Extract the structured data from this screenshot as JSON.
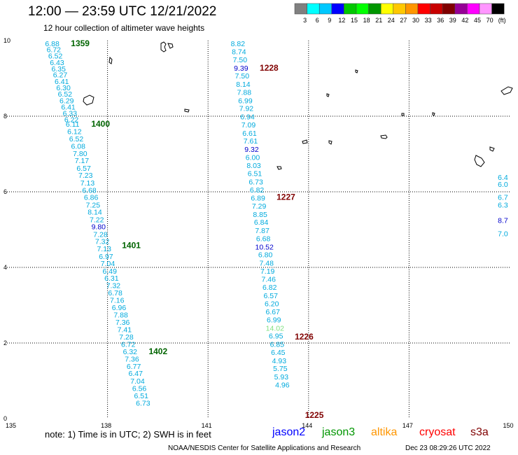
{
  "header": {
    "title": "12:00 — 23:59 UTC 12/21/2022",
    "subtitle": "12 hour collection of altimeter wave heights"
  },
  "legend": {
    "labels": [
      "3",
      "6",
      "9",
      "12",
      "15",
      "18",
      "21",
      "24",
      "27",
      "30",
      "33",
      "36",
      "39",
      "42",
      "45",
      "70",
      "(ft)"
    ],
    "colors": [
      "#808080",
      "#00ffff",
      "#00c8ff",
      "#0000ff",
      "#00c800",
      "#00ff00",
      "#009600",
      "#ffff00",
      "#ffc800",
      "#ff9600",
      "#ff0000",
      "#c80000",
      "#800000",
      "#960096",
      "#ff00ff",
      "#ff96ff",
      "#000000"
    ]
  },
  "axes": {
    "x_ticks": [
      "135",
      "138",
      "141",
      "144",
      "147",
      "150"
    ],
    "y_ticks": [
      "10",
      "8",
      "6",
      "4",
      "2",
      "0"
    ]
  },
  "tracks": [
    {
      "name": "track-1",
      "times": [
        {
          "label": "1359",
          "lat": 9.93,
          "color": "#006400"
        },
        {
          "label": "1400",
          "lat": 7.8,
          "color": "#006400"
        },
        {
          "label": "1401",
          "lat": 4.58,
          "color": "#006400"
        },
        {
          "label": "1402",
          "lat": 1.78,
          "color": "#006400"
        }
      ],
      "readings": [
        {
          "v": "6.88",
          "lat": 9.93,
          "c": "#00aadd"
        },
        {
          "v": "6.72",
          "lat": 9.77,
          "c": "#00aadd"
        },
        {
          "v": "6.52",
          "lat": 9.6,
          "c": "#00aadd"
        },
        {
          "v": "6.43",
          "lat": 9.43,
          "c": "#00aadd"
        },
        {
          "v": "6.35",
          "lat": 9.26,
          "c": "#00aadd"
        },
        {
          "v": "6.27",
          "lat": 9.1,
          "c": "#00aadd"
        },
        {
          "v": "6.41",
          "lat": 8.93,
          "c": "#00aadd"
        },
        {
          "v": "6.30",
          "lat": 8.76,
          "c": "#00aadd"
        },
        {
          "v": "6.52",
          "lat": 8.59,
          "c": "#00aadd"
        },
        {
          "v": "6.29",
          "lat": 8.42,
          "c": "#00aadd"
        },
        {
          "v": "6.41",
          "lat": 8.25,
          "c": "#00aadd"
        },
        {
          "v": "6.33",
          "lat": 8.08,
          "c": "#00aadd"
        },
        {
          "v": "6.22",
          "lat": 7.92,
          "c": "#00aadd"
        },
        {
          "v": "6.11",
          "lat": 7.8,
          "c": "#00aadd"
        },
        {
          "v": "6.12",
          "lat": 7.6,
          "c": "#00aadd"
        },
        {
          "v": "6.52",
          "lat": 7.41,
          "c": "#00aadd"
        },
        {
          "v": "6.08",
          "lat": 7.21,
          "c": "#00aadd"
        },
        {
          "v": "7.80",
          "lat": 7.02,
          "c": "#00aadd"
        },
        {
          "v": "7.17",
          "lat": 6.83,
          "c": "#00aadd"
        },
        {
          "v": "6.57",
          "lat": 6.63,
          "c": "#00aadd"
        },
        {
          "v": "7.23",
          "lat": 6.44,
          "c": "#00aadd"
        },
        {
          "v": "7.13",
          "lat": 6.24,
          "c": "#00aadd"
        },
        {
          "v": "6.68",
          "lat": 6.05,
          "c": "#00aadd"
        },
        {
          "v": "6.86",
          "lat": 5.86,
          "c": "#00aadd"
        },
        {
          "v": "7.25",
          "lat": 5.66,
          "c": "#00aadd"
        },
        {
          "v": "8.14",
          "lat": 5.47,
          "c": "#00aadd"
        },
        {
          "v": "7.22",
          "lat": 5.27,
          "c": "#00aadd"
        },
        {
          "v": "9.80",
          "lat": 5.08,
          "c": "#0000cc"
        },
        {
          "v": "7.28",
          "lat": 4.88,
          "c": "#00aadd"
        },
        {
          "v": "7.32",
          "lat": 4.69,
          "c": "#00aadd"
        },
        {
          "v": "7.13",
          "lat": 4.5,
          "c": "#00aadd"
        },
        {
          "v": "6.97",
          "lat": 4.3,
          "c": "#00aadd"
        },
        {
          "v": "7.04",
          "lat": 4.11,
          "c": "#00aadd"
        },
        {
          "v": "6.49",
          "lat": 3.91,
          "c": "#00aadd"
        },
        {
          "v": "6.31",
          "lat": 3.72,
          "c": "#00aadd"
        },
        {
          "v": "7.32",
          "lat": 3.53,
          "c": "#00aadd"
        },
        {
          "v": "6.78",
          "lat": 3.33,
          "c": "#00aadd"
        },
        {
          "v": "7.16",
          "lat": 3.14,
          "c": "#00aadd"
        },
        {
          "v": "6.96",
          "lat": 2.94,
          "c": "#00aadd"
        },
        {
          "v": "7.88",
          "lat": 2.75,
          "c": "#00aadd"
        },
        {
          "v": "7.36",
          "lat": 2.56,
          "c": "#00aadd"
        },
        {
          "v": "7.41",
          "lat": 2.36,
          "c": "#00aadd"
        },
        {
          "v": "7.28",
          "lat": 2.17,
          "c": "#00aadd"
        },
        {
          "v": "6.72",
          "lat": 1.97,
          "c": "#00aadd"
        },
        {
          "v": "6.32",
          "lat": 1.78,
          "c": "#00aadd"
        },
        {
          "v": "7.36",
          "lat": 1.58,
          "c": "#00aadd"
        },
        {
          "v": "6.77",
          "lat": 1.39,
          "c": "#00aadd"
        },
        {
          "v": "6.47",
          "lat": 1.2,
          "c": "#00aadd"
        },
        {
          "v": "7.04",
          "lat": 1.0,
          "c": "#00aadd"
        },
        {
          "v": "6.56",
          "lat": 0.81,
          "c": "#00aadd"
        },
        {
          "v": "6.51",
          "lat": 0.61,
          "c": "#00aadd"
        },
        {
          "v": "6.73",
          "lat": 0.42,
          "c": "#00aadd"
        }
      ]
    },
    {
      "name": "track-2",
      "times": [
        {
          "label": "1228",
          "lat": 9.28,
          "color": "#800000"
        },
        {
          "label": "1227",
          "lat": 5.86,
          "color": "#800000"
        },
        {
          "label": "1226",
          "lat": 2.17,
          "color": "#800000"
        },
        {
          "label": "1225",
          "lat": 0.09,
          "color": "#800000"
        }
      ],
      "readings": [
        {
          "v": "8.82",
          "lat": 9.93,
          "c": "#00aadd"
        },
        {
          "v": "8.74",
          "lat": 9.71,
          "c": "#00aadd"
        },
        {
          "v": "7.50",
          "lat": 9.5,
          "c": "#00aadd"
        },
        {
          "v": "9.39",
          "lat": 9.28,
          "c": "#0000cc"
        },
        {
          "v": "7.50",
          "lat": 9.07,
          "c": "#00aadd"
        },
        {
          "v": "8.14",
          "lat": 8.85,
          "c": "#00aadd"
        },
        {
          "v": "7.88",
          "lat": 8.64,
          "c": "#00aadd"
        },
        {
          "v": "6.99",
          "lat": 8.42,
          "c": "#00aadd"
        },
        {
          "v": "7.92",
          "lat": 8.21,
          "c": "#00aadd"
        },
        {
          "v": "6.94",
          "lat": 7.99,
          "c": "#00aadd"
        },
        {
          "v": "7.09",
          "lat": 7.78,
          "c": "#00aadd"
        },
        {
          "v": "6.61",
          "lat": 7.56,
          "c": "#00aadd"
        },
        {
          "v": "7.61",
          "lat": 7.35,
          "c": "#00aadd"
        },
        {
          "v": "9.32",
          "lat": 7.13,
          "c": "#0000cc"
        },
        {
          "v": "6.00",
          "lat": 6.92,
          "c": "#00aadd"
        },
        {
          "v": "8.03",
          "lat": 6.7,
          "c": "#00aadd"
        },
        {
          "v": "6.51",
          "lat": 6.49,
          "c": "#00aadd"
        },
        {
          "v": "6.73",
          "lat": 6.27,
          "c": "#00aadd"
        },
        {
          "v": "6.82",
          "lat": 6.06,
          "c": "#00aadd"
        },
        {
          "v": "6.89",
          "lat": 5.84,
          "c": "#00aadd"
        },
        {
          "v": "7.29",
          "lat": 5.63,
          "c": "#00aadd"
        },
        {
          "v": "8.85",
          "lat": 5.41,
          "c": "#00aadd"
        },
        {
          "v": "6.84",
          "lat": 5.2,
          "c": "#00aadd"
        },
        {
          "v": "7.87",
          "lat": 4.98,
          "c": "#00aadd"
        },
        {
          "v": "6.68",
          "lat": 4.77,
          "c": "#00aadd"
        },
        {
          "v": "10.52",
          "lat": 4.55,
          "c": "#0000cc"
        },
        {
          "v": "6.80",
          "lat": 4.34,
          "c": "#00aadd"
        },
        {
          "v": "7.48",
          "lat": 4.12,
          "c": "#00aadd"
        },
        {
          "v": "7.19",
          "lat": 3.91,
          "c": "#00aadd"
        },
        {
          "v": "7.46",
          "lat": 3.69,
          "c": "#00aadd"
        },
        {
          "v": "6.82",
          "lat": 3.48,
          "c": "#00aadd"
        },
        {
          "v": "6.57",
          "lat": 3.26,
          "c": "#00aadd"
        },
        {
          "v": "6.20",
          "lat": 3.05,
          "c": "#00aadd"
        },
        {
          "v": "6.67",
          "lat": 2.83,
          "c": "#00aadd"
        },
        {
          "v": "6.99",
          "lat": 2.62,
          "c": "#00aadd"
        },
        {
          "v": "14.02",
          "lat": 2.4,
          "c": "#80e080"
        },
        {
          "v": "6.95",
          "lat": 2.19,
          "c": "#00aadd"
        },
        {
          "v": "6.85",
          "lat": 1.97,
          "c": "#00aadd"
        },
        {
          "v": "6.45",
          "lat": 1.76,
          "c": "#00aadd"
        },
        {
          "v": "4.93",
          "lat": 1.54,
          "c": "#00aadd"
        },
        {
          "v": "5.75",
          "lat": 1.33,
          "c": "#00aadd"
        },
        {
          "v": "5.93",
          "lat": 1.11,
          "c": "#00aadd"
        },
        {
          "v": "4.96",
          "lat": 0.9,
          "c": "#00aadd"
        }
      ]
    },
    {
      "name": "track-3-edge",
      "times": [],
      "readings": [
        {
          "v": "6.4",
          "lat": 6.39,
          "c": "#00aadd"
        },
        {
          "v": "6.0",
          "lat": 6.2,
          "c": "#00aadd"
        },
        {
          "v": "6.7",
          "lat": 5.86,
          "c": "#00aadd"
        },
        {
          "v": "6.3",
          "lat": 5.66,
          "c": "#00aadd"
        },
        {
          "v": "8.7",
          "lat": 5.25,
          "c": "#0000cc"
        },
        {
          "v": "7.0",
          "lat": 4.9,
          "c": "#00aadd"
        }
      ]
    }
  ],
  "footer": {
    "note": "note:  1) Time is in UTC;  2) SWH is in feet",
    "satellites": [
      {
        "name": "jason2",
        "color": "#0000ff"
      },
      {
        "name": "jason3",
        "color": "#009600"
      },
      {
        "name": "altika",
        "color": "#ff9600"
      },
      {
        "name": "cryosat",
        "color": "#ff0000"
      },
      {
        "name": "s3a",
        "color": "#800000"
      }
    ],
    "credit": "NOAA/NESDIS Center for Satellite Applications and Research",
    "timestamp": "Dec 23 08:29:26 UTC 2022"
  }
}
